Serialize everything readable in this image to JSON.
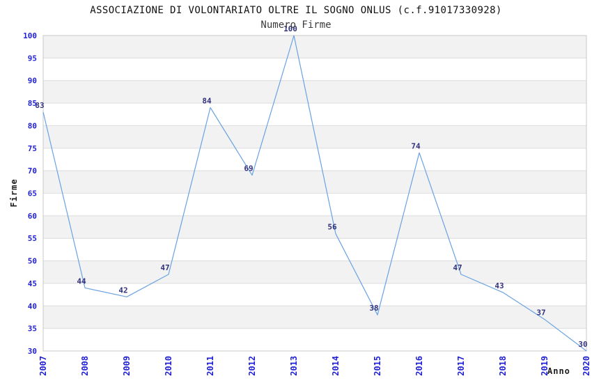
{
  "chart_data": {
    "type": "line",
    "title": "ASSOCIAZIONE DI VOLONTARIATO OLTRE IL SOGNO ONLUS (c.f.91017330928)",
    "subtitle": "Numero Firme",
    "xlabel": "Anno",
    "ylabel": "Firme",
    "categories": [
      "2007",
      "2008",
      "2009",
      "2010",
      "2011",
      "2012",
      "2013",
      "2014",
      "2015",
      "2016",
      "2017",
      "2018",
      "2019",
      "2020"
    ],
    "series": [
      {
        "name": "Numero Firme",
        "values": [
          83,
          44,
          42,
          47,
          84,
          69,
          100,
          56,
          38,
          74,
          47,
          43,
          37,
          30
        ]
      }
    ],
    "ylim": [
      30,
      100
    ],
    "ytick_step": 5,
    "grid": true,
    "banded_background": true,
    "legend": false,
    "data_labels_shown": true,
    "colors": {
      "line": "#69a2e3",
      "tick_label": "#1f1fd6",
      "data_label": "#32327d",
      "band": "#f2f2f2",
      "band_edge": "#e2e2e2",
      "gridline": "#e0e0e0",
      "plot_border": "#c9c9c9",
      "title": "#111111",
      "subtitle": "#3c3c3c",
      "axis_label": "#1c1c1c",
      "background": "#ffffff"
    }
  }
}
